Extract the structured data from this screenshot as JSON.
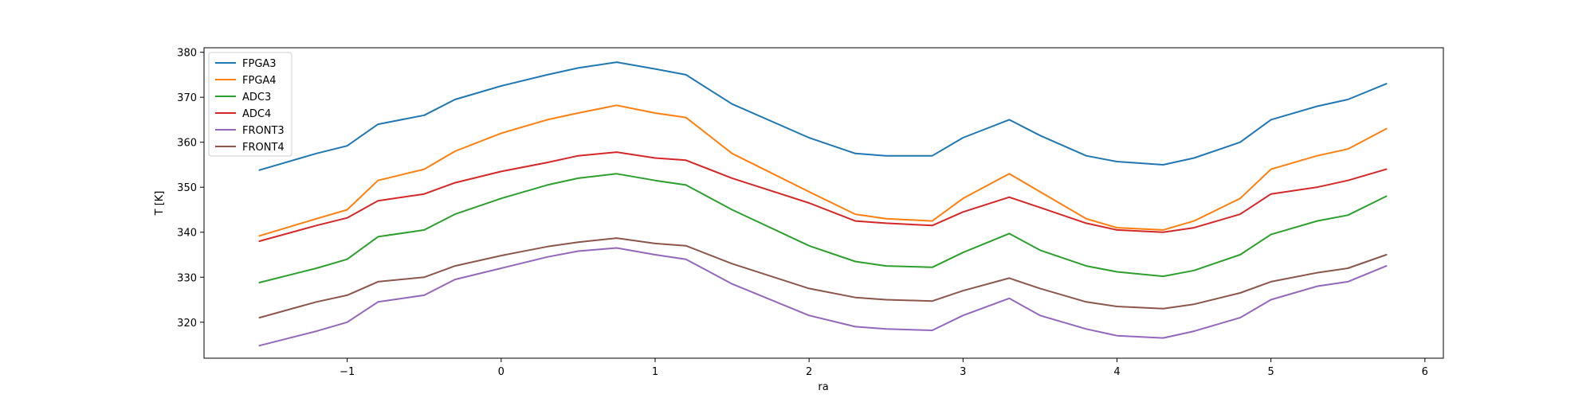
{
  "chart_data": {
    "type": "line",
    "title": "",
    "xlabel": "ra",
    "ylabel": "T [K]",
    "xlim": [
      -1.93,
      6.12
    ],
    "ylim": [
      312,
      381
    ],
    "xticks": [
      -1,
      0,
      1,
      2,
      3,
      4,
      5,
      6
    ],
    "yticks": [
      320,
      330,
      340,
      350,
      360,
      370,
      380
    ],
    "xtick_labels": [
      "−1",
      "0",
      "1",
      "2",
      "3",
      "4",
      "5",
      "6"
    ],
    "ytick_labels": [
      "320",
      "330",
      "340",
      "350",
      "360",
      "370",
      "380"
    ],
    "grid": false,
    "legend_position": "top-left",
    "x": [
      -1.57,
      -1.2,
      -1.0,
      -0.8,
      -0.5,
      -0.3,
      0.0,
      0.3,
      0.5,
      0.75,
      1.0,
      1.2,
      1.5,
      2.0,
      2.3,
      2.5,
      2.8,
      3.0,
      3.3,
      3.5,
      3.8,
      4.0,
      4.3,
      4.5,
      4.8,
      5.0,
      5.3,
      5.5,
      5.75
    ],
    "series": [
      {
        "name": "FPGA3",
        "color": "#1f77b4",
        "values": [
          353.8,
          357.5,
          359.2,
          364.0,
          366.0,
          369.5,
          372.5,
          375.0,
          376.5,
          377.8,
          376.3,
          375.0,
          368.5,
          361.0,
          357.5,
          357.0,
          357.0,
          361.0,
          365.0,
          361.5,
          357.0,
          355.7,
          355.0,
          356.5,
          360.0,
          365.0,
          368.0,
          369.5,
          373.0
        ]
      },
      {
        "name": "FPGA4",
        "color": "#ff7f0e",
        "values": [
          339.2,
          343.0,
          345.0,
          351.5,
          354.0,
          358.0,
          362.0,
          365.0,
          366.5,
          368.2,
          366.5,
          365.5,
          357.5,
          349.0,
          344.0,
          343.0,
          342.5,
          347.5,
          353.0,
          349.0,
          343.0,
          341.0,
          340.5,
          342.5,
          347.5,
          354.0,
          357.0,
          358.5,
          363.0
        ]
      },
      {
        "name": "ADC3",
        "color": "#2ca02c",
        "values": [
          328.8,
          332.0,
          334.0,
          339.0,
          340.5,
          344.0,
          347.5,
          350.5,
          352.0,
          353.0,
          351.5,
          350.5,
          345.0,
          337.0,
          333.5,
          332.5,
          332.2,
          335.5,
          339.7,
          336.0,
          332.5,
          331.2,
          330.2,
          331.5,
          335.0,
          339.5,
          342.5,
          343.8,
          348.0
        ]
      },
      {
        "name": "ADC4",
        "color": "#d62728",
        "values": [
          338.0,
          341.5,
          343.2,
          347.0,
          348.5,
          351.0,
          353.5,
          355.5,
          357.0,
          357.8,
          356.5,
          356.0,
          352.0,
          346.5,
          342.5,
          342.0,
          341.5,
          344.5,
          347.8,
          345.5,
          342.0,
          340.5,
          340.0,
          341.0,
          344.0,
          348.5,
          350.0,
          351.5,
          354.0
        ]
      },
      {
        "name": "FRONT3",
        "color": "#9467bd",
        "values": [
          314.8,
          318.0,
          320.0,
          324.5,
          326.0,
          329.5,
          332.0,
          334.5,
          335.8,
          336.5,
          335.0,
          334.0,
          328.5,
          321.5,
          319.0,
          318.5,
          318.2,
          321.5,
          325.3,
          321.5,
          318.5,
          317.0,
          316.5,
          318.0,
          321.0,
          325.0,
          328.0,
          329.0,
          332.5
        ]
      },
      {
        "name": "FRONT4",
        "color": "#8c564b",
        "values": [
          321.0,
          324.5,
          326.0,
          329.0,
          330.0,
          332.5,
          334.8,
          336.8,
          337.8,
          338.7,
          337.5,
          337.0,
          333.0,
          327.5,
          325.5,
          325.0,
          324.7,
          327.0,
          329.8,
          327.5,
          324.5,
          323.5,
          323.0,
          324.0,
          326.5,
          329.0,
          331.0,
          332.0,
          335.0
        ]
      }
    ]
  }
}
